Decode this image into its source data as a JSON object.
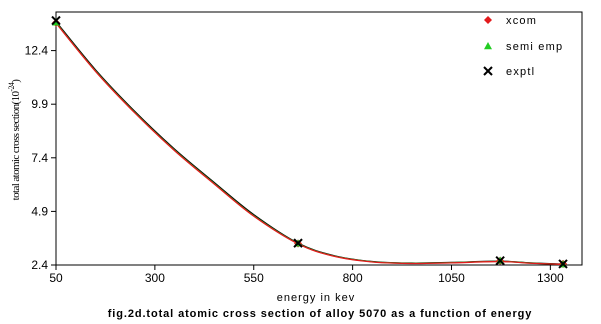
{
  "chart_data": {
    "type": "line",
    "xlabel": "energy in kev",
    "ylabel": "total atomic cross section",
    "ylabel_unit": "(10",
    "ylabel_exp": "-24",
    "ylabel_close": ")",
    "caption": "fig.2d.total atomic cross section of alloy 5070 as a function of energy",
    "xlim": [
      50,
      1380
    ],
    "ylim": [
      2.4,
      14.2
    ],
    "x_ticks": [
      "50",
      "300",
      "550",
      "800",
      "1050",
      "1300"
    ],
    "y_ticks": [
      "2.4",
      "4.9",
      "7.4",
      "9.9",
      "12.4"
    ],
    "x_tick_values": [
      50,
      300,
      550,
      800,
      1050,
      1300
    ],
    "y_tick_values": [
      2.4,
      4.9,
      7.4,
      9.9,
      12.4
    ],
    "legend_position": "top-right",
    "series": [
      {
        "name": "xcom",
        "color": "#e31a1c",
        "marker": "diamond",
        "x": [
          50,
          662,
          1173,
          1332
        ],
        "y": [
          13.7,
          3.4,
          2.6,
          2.45
        ]
      },
      {
        "name": "semi emp",
        "color": "#22cc22",
        "marker": "triangle",
        "x": [
          50,
          662,
          1173,
          1332
        ],
        "y": [
          13.72,
          3.41,
          2.61,
          2.44
        ]
      },
      {
        "name": "exptl",
        "color": "#000000",
        "marker": "cross",
        "x": [
          50,
          662,
          1173,
          1332
        ],
        "y": [
          13.8,
          3.42,
          2.6,
          2.45
        ]
      }
    ],
    "curves": [
      {
        "color": "#000000",
        "x": [
          50,
          150,
          250,
          350,
          450,
          550,
          662,
          750,
          850,
          950,
          1050,
          1173,
          1250,
          1332
        ],
        "y": [
          13.75,
          11.5,
          9.55,
          7.8,
          6.25,
          4.75,
          3.42,
          2.85,
          2.56,
          2.49,
          2.52,
          2.58,
          2.5,
          2.44
        ]
      },
      {
        "color": "#22aa22",
        "x": [
          50,
          150,
          250,
          350,
          450,
          550,
          662,
          750,
          850,
          950,
          1050,
          1173,
          1250,
          1332
        ],
        "y": [
          13.7,
          11.45,
          9.5,
          7.75,
          6.2,
          4.7,
          3.4,
          2.83,
          2.55,
          2.48,
          2.51,
          2.57,
          2.49,
          2.43
        ]
      },
      {
        "color": "#e31a1c",
        "x": [
          50,
          150,
          250,
          350,
          450,
          550,
          662,
          750,
          850,
          950,
          1050,
          1173,
          1250,
          1332
        ],
        "y": [
          13.68,
          11.43,
          9.48,
          7.73,
          6.18,
          4.68,
          3.39,
          2.82,
          2.54,
          2.47,
          2.5,
          2.56,
          2.48,
          2.43
        ]
      }
    ]
  }
}
